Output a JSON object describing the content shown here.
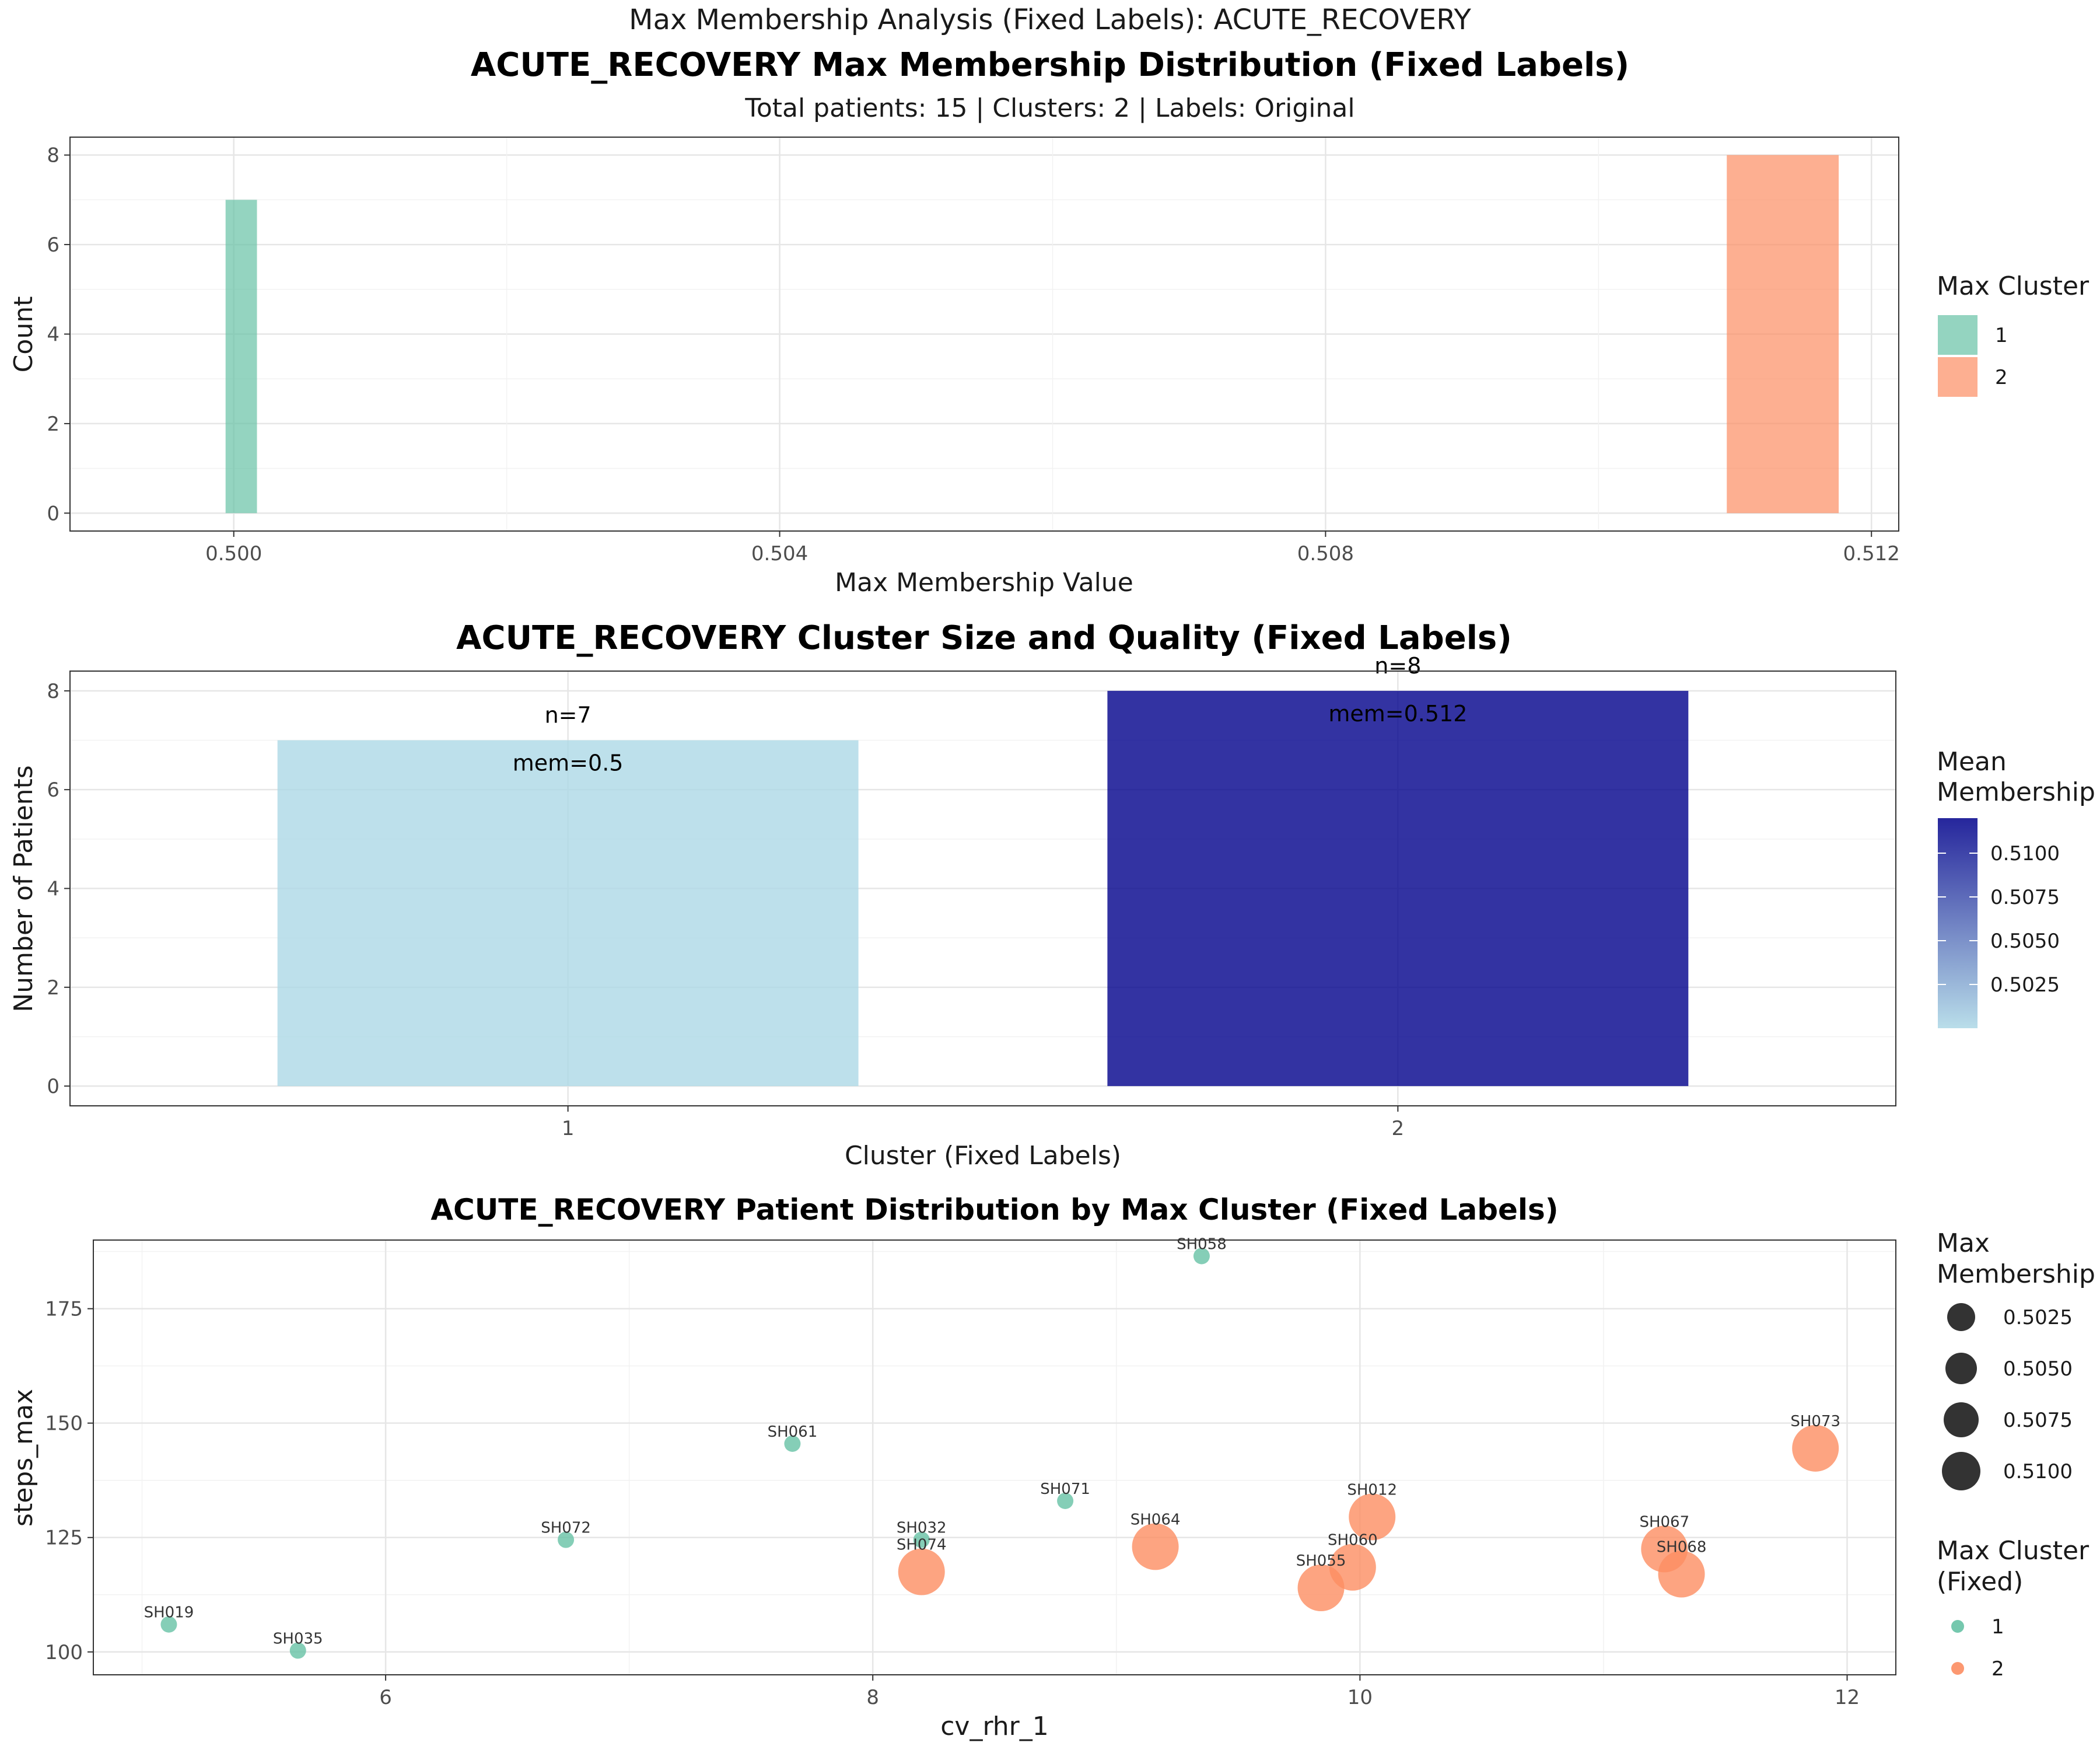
{
  "figure": {
    "suptitle": "Max Membership Analysis (Fixed Labels): ACUTE_RECOVERY"
  },
  "chart_data": [
    {
      "type": "bar",
      "title": "ACUTE_RECOVERY Max Membership Distribution (Fixed Labels)",
      "subtitle": "Total patients: 15 | Clusters: 2 | Labels: Original",
      "xlabel": "Max Membership Value",
      "ylabel": "Count",
      "xlim": [
        0.4988,
        0.5122
      ],
      "ylim": [
        -0.4,
        8.4
      ],
      "xticks": [
        0.5,
        0.504,
        0.508,
        0.512
      ],
      "xtick_labels": [
        "0.500",
        "0.504",
        "0.508",
        "0.512"
      ],
      "yticks": [
        0,
        2,
        4,
        6,
        8
      ],
      "ytick_labels": [
        "0",
        "2",
        "4",
        "6",
        "8"
      ],
      "grid": true,
      "bars": [
        {
          "x0": 0.49994,
          "x1": 0.50017,
          "value": 7,
          "cluster": "1",
          "color": "#66C2A5"
        },
        {
          "x0": 0.51094,
          "x1": 0.51176,
          "value": 8,
          "cluster": "2",
          "color": "#FC8D62"
        }
      ],
      "legend": {
        "title": "Max Cluster",
        "position": "right",
        "items": [
          {
            "label": "1",
            "color": "#66C2A5"
          },
          {
            "label": "2",
            "color": "#FC8D62"
          }
        ]
      }
    },
    {
      "type": "bar",
      "title": "ACUTE_RECOVERY Cluster Size and Quality (Fixed Labels)",
      "xlabel": "Cluster (Fixed Labels)",
      "ylabel": "Number of Patients",
      "categories": [
        "1",
        "2"
      ],
      "values": [
        7,
        8
      ],
      "mean_membership": [
        0.5,
        0.512
      ],
      "data_labels": [
        {
          "n": "n=7",
          "mem": "mem=0.5"
        },
        {
          "n": "n=8",
          "mem": "mem=0.512"
        }
      ],
      "ylim": [
        -0.4,
        8.4
      ],
      "yticks": [
        0,
        2,
        4,
        6,
        8
      ],
      "ytick_labels": [
        "0",
        "2",
        "4",
        "6",
        "8"
      ],
      "grid": true,
      "colorbar": {
        "title_lines": [
          "Mean",
          "Membership"
        ],
        "low_color": "#ADD8E6",
        "high_color": "#00008B",
        "range": [
          0.5,
          0.512
        ],
        "ticks": [
          0.5025,
          0.505,
          0.5075,
          0.51
        ],
        "tick_labels": [
          "0.5025",
          "0.5050",
          "0.5075",
          "0.5100"
        ],
        "position": "right"
      }
    },
    {
      "type": "scatter",
      "title": "ACUTE_RECOVERY Patient Distribution by Max Cluster (Fixed Labels)",
      "xlabel": "cv_rhr_1",
      "ylabel": "steps_max",
      "xlim": [
        4.8,
        12.2
      ],
      "ylim": [
        95,
        190
      ],
      "xticks": [
        6,
        8,
        10,
        12
      ],
      "xtick_labels": [
        "6",
        "8",
        "10",
        "12"
      ],
      "yticks": [
        100,
        125,
        150,
        175
      ],
      "ytick_labels": [
        "100",
        "125",
        "150",
        "175"
      ],
      "grid": true,
      "points": [
        {
          "id": "SH058",
          "x": 9.35,
          "y": 186.5,
          "cluster": 1,
          "membership": 0.5
        },
        {
          "id": "SH061",
          "x": 7.67,
          "y": 145.5,
          "cluster": 1,
          "membership": 0.5
        },
        {
          "id": "SH071",
          "x": 8.79,
          "y": 133,
          "cluster": 1,
          "membership": 0.5
        },
        {
          "id": "SH072",
          "x": 6.74,
          "y": 124.5,
          "cluster": 1,
          "membership": 0.5
        },
        {
          "id": "SH032",
          "x": 8.2,
          "y": 124.5,
          "cluster": 1,
          "membership": 0.5
        },
        {
          "id": "SH019",
          "x": 5.11,
          "y": 106,
          "cluster": 1,
          "membership": 0.5
        },
        {
          "id": "SH035",
          "x": 5.64,
          "y": 100.3,
          "cluster": 1,
          "membership": 0.5
        },
        {
          "id": "SH073",
          "x": 11.87,
          "y": 144.5,
          "cluster": 2,
          "membership": 0.512
        },
        {
          "id": "SH012",
          "x": 10.05,
          "y": 129.5,
          "cluster": 2,
          "membership": 0.512
        },
        {
          "id": "SH064",
          "x": 9.16,
          "y": 123,
          "cluster": 2,
          "membership": 0.512
        },
        {
          "id": "SH067",
          "x": 11.25,
          "y": 122.5,
          "cluster": 2,
          "membership": 0.512
        },
        {
          "id": "SH060",
          "x": 9.97,
          "y": 118.5,
          "cluster": 2,
          "membership": 0.512
        },
        {
          "id": "SH074",
          "x": 8.2,
          "y": 117.5,
          "cluster": 2,
          "membership": 0.512
        },
        {
          "id": "SH068",
          "x": 11.32,
          "y": 117,
          "cluster": 2,
          "membership": 0.512
        },
        {
          "id": "SH055",
          "x": 9.84,
          "y": 114,
          "cluster": 2,
          "membership": 0.512
        }
      ],
      "size_legend": {
        "title_lines": [
          "Max",
          "Membership"
        ],
        "values": [
          0.5025,
          0.505,
          0.5075,
          0.51
        ],
        "labels": [
          "0.5025",
          "0.5050",
          "0.5075",
          "0.5100"
        ],
        "color": "#333333"
      },
      "color_legend": {
        "title_lines": [
          "Max Cluster",
          "(Fixed)"
        ],
        "items": [
          {
            "label": "1",
            "color": "#66C2A5"
          },
          {
            "label": "2",
            "color": "#FC8D62"
          }
        ]
      }
    }
  ]
}
